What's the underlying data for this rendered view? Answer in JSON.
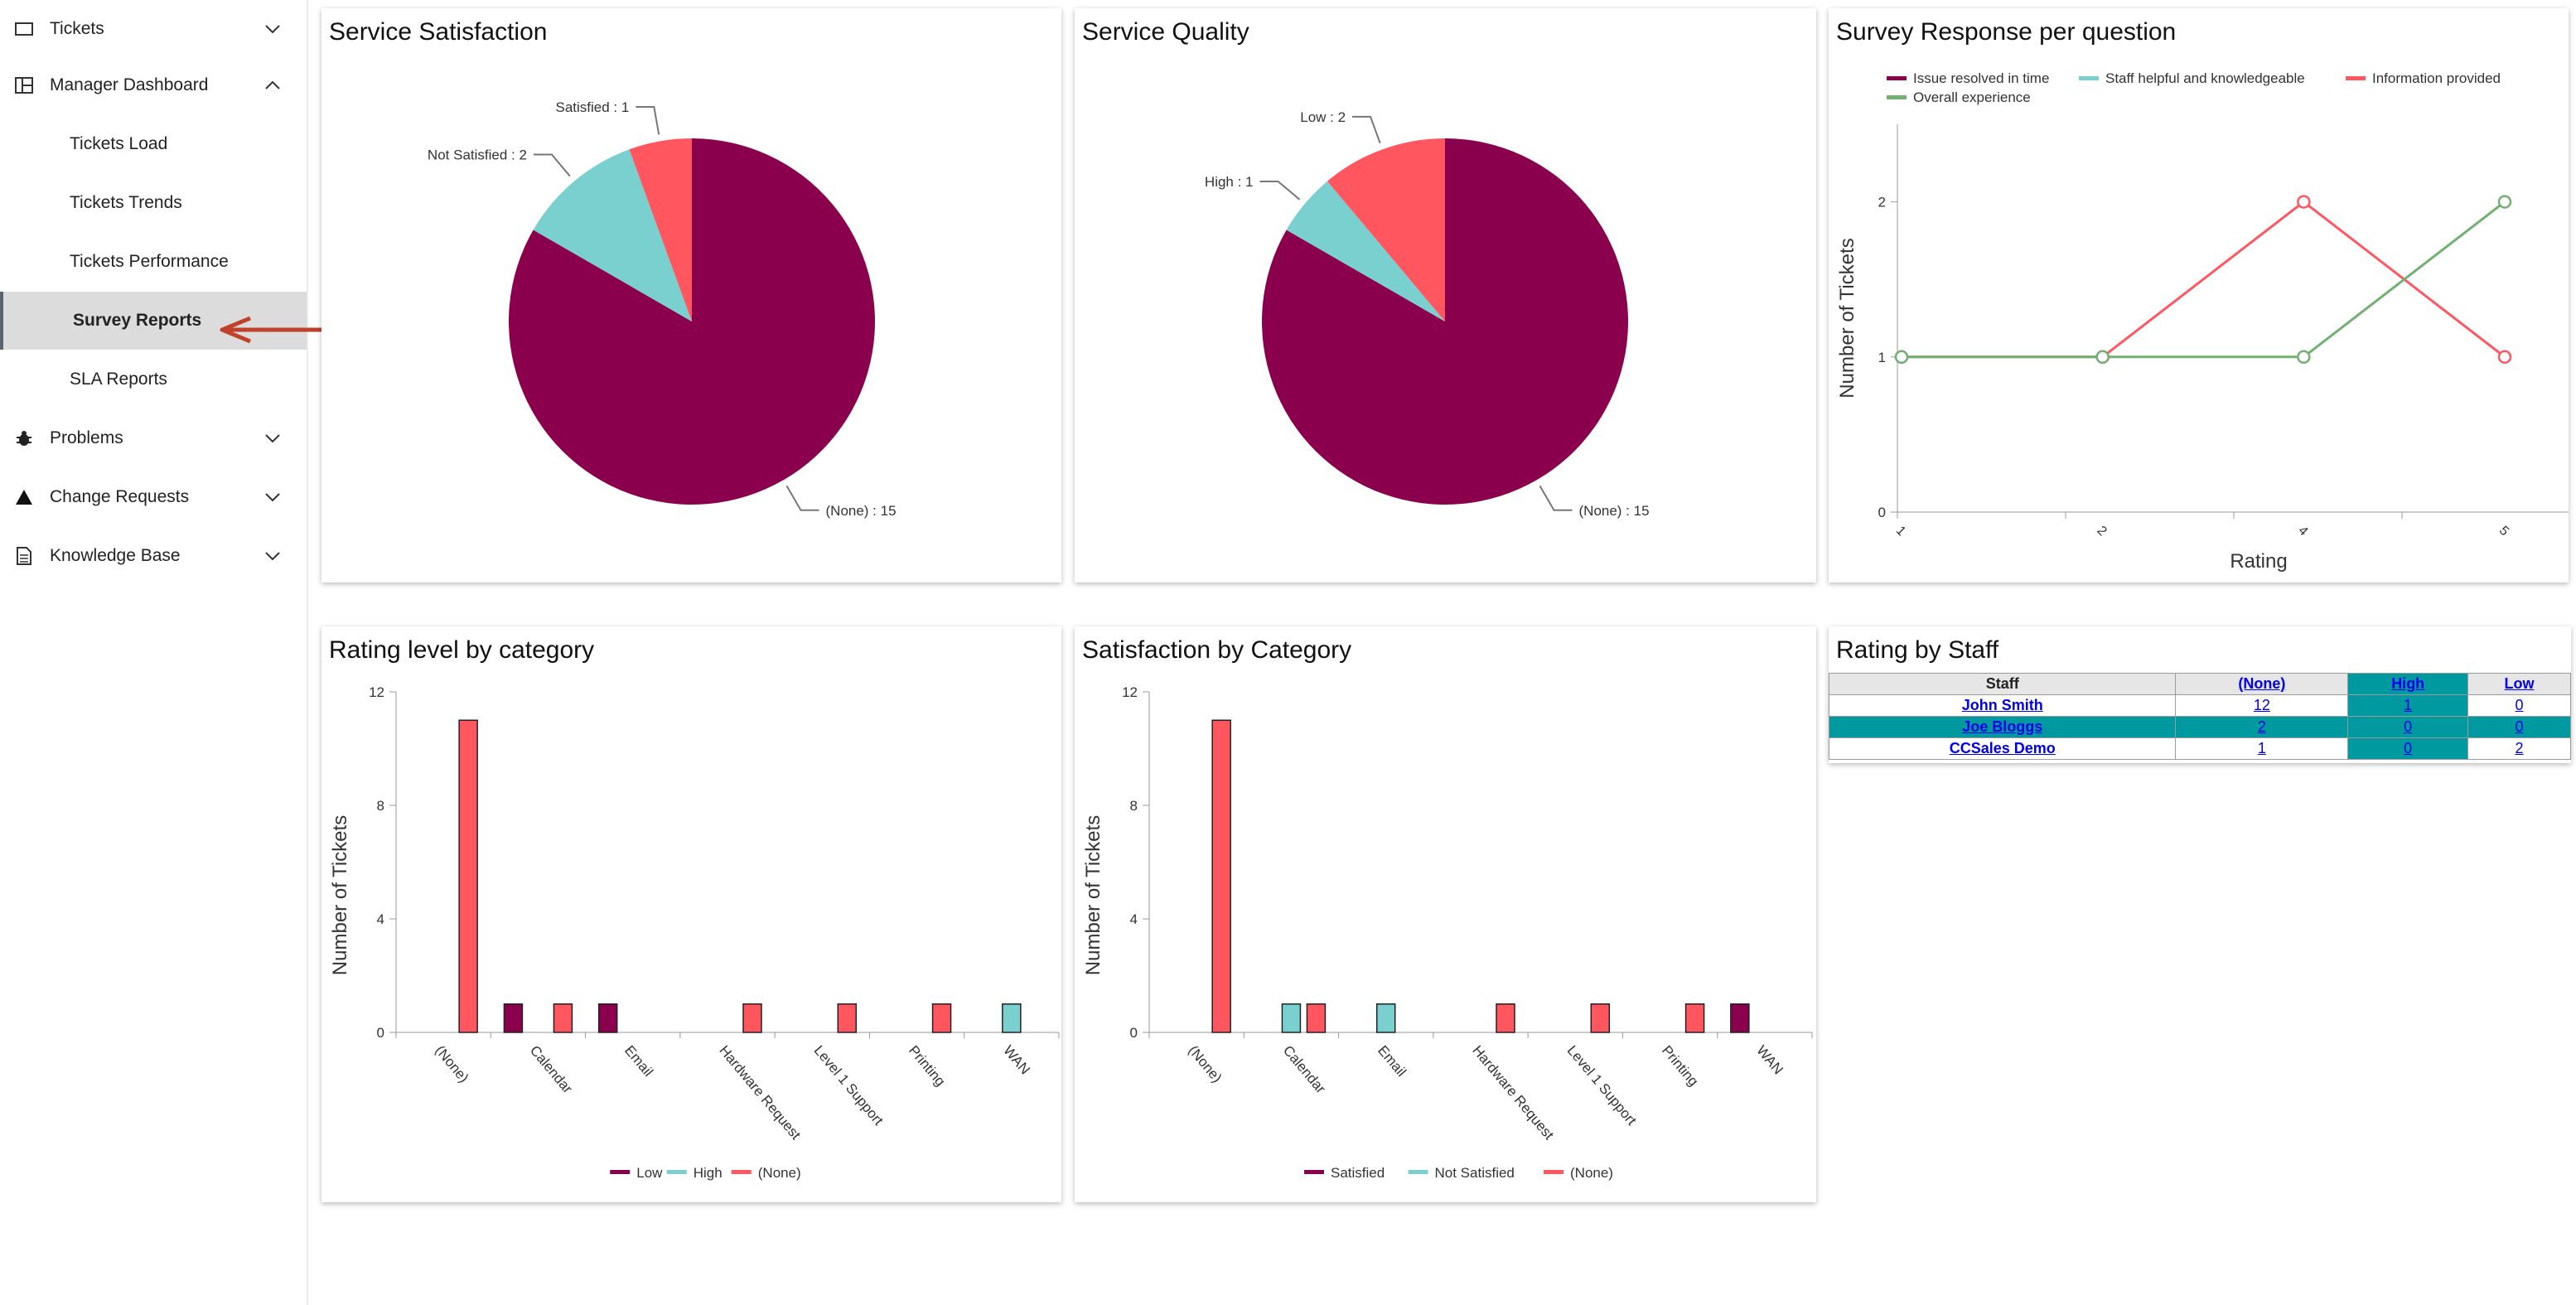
{
  "sidebar": {
    "tickets": "Tickets",
    "manager_dashboard": "Manager Dashboard",
    "sub_items": [
      "Tickets Load",
      "Tickets Trends",
      "Tickets Performance",
      "Survey Reports",
      "SLA Reports"
    ],
    "active_item": "Survey Reports",
    "problems": "Problems",
    "change_requests": "Change Requests",
    "knowledge_base": "Knowledge Base"
  },
  "panels": {
    "service_satisfaction": "Service Satisfaction",
    "service_quality": "Service Quality",
    "survey_response": "Survey Response per question",
    "rating_level": "Rating level by category",
    "satisfaction_by_category": "Satisfaction by Category",
    "rating_by_staff": "Rating by Staff"
  },
  "colors": {
    "maroon": "#8a004c",
    "teal": "#7acfcf",
    "red": "#ff5660",
    "green": "#70b070",
    "table_teal": "#00999f"
  },
  "chart_data": [
    {
      "id": "service_satisfaction",
      "type": "pie",
      "title": "Service Satisfaction",
      "slices": [
        {
          "label": "(None)",
          "value": 15,
          "text": "(None) : 15",
          "color": "#8a004c"
        },
        {
          "label": "Not Satisfied",
          "value": 2,
          "text": "Not Satisfied : 2",
          "color": "#7acfcf"
        },
        {
          "label": "Satisfied",
          "value": 1,
          "text": "Satisfied : 1",
          "color": "#ff5660"
        }
      ]
    },
    {
      "id": "service_quality",
      "type": "pie",
      "title": "Service Quality",
      "slices": [
        {
          "label": "(None)",
          "value": 15,
          "text": "(None) : 15",
          "color": "#8a004c"
        },
        {
          "label": "High",
          "value": 1,
          "text": "High : 1",
          "color": "#7acfcf"
        },
        {
          "label": "Low",
          "value": 2,
          "text": "Low : 2",
          "color": "#ff5660"
        }
      ]
    },
    {
      "id": "survey_response",
      "type": "line",
      "title": "Survey Response per question",
      "x": [
        "1",
        "2",
        "4",
        "5"
      ],
      "xlabel": "Rating",
      "ylabel": "Number of Tickets",
      "yticks": [
        0,
        1,
        2
      ],
      "ylim": [
        0,
        2.5
      ],
      "legend": [
        {
          "name": "Issue resolved in time",
          "color": "#8a004c"
        },
        {
          "name": "Staff helpful and knowledgeable",
          "color": "#7acfcf"
        },
        {
          "name": "Information provided",
          "color": "#ff5660"
        },
        {
          "name": "Overall experience",
          "color": "#70b070"
        }
      ],
      "series": [
        {
          "name": "Information provided",
          "color": "#ff5660",
          "values": [
            1,
            1,
            2,
            1
          ]
        },
        {
          "name": "Overall experience",
          "color": "#70b070",
          "values": [
            1,
            1,
            1,
            2
          ]
        }
      ]
    },
    {
      "id": "rating_level",
      "type": "bar",
      "title": "Rating level by category",
      "categories": [
        "(None)",
        "Calendar",
        "Email",
        "Hardware Request",
        "Level 1 Support",
        "Printing",
        "WAN"
      ],
      "ylabel": "Number of Tickets",
      "yticks": [
        0,
        4,
        8,
        12
      ],
      "ylim": [
        0,
        12
      ],
      "series": [
        {
          "name": "Low",
          "color": "#8a004c",
          "values": [
            0,
            1,
            1,
            0,
            0,
            0,
            0
          ]
        },
        {
          "name": "High",
          "color": "#7acfcf",
          "values": [
            0,
            0,
            0,
            0,
            0,
            0,
            1
          ]
        },
        {
          "name": "(None)",
          "color": "#ff5660",
          "values": [
            11,
            1,
            0,
            1,
            1,
            1,
            0
          ]
        }
      ]
    },
    {
      "id": "satisfaction_by_category",
      "type": "bar",
      "title": "Satisfaction by Category",
      "categories": [
        "(None)",
        "Calendar",
        "Email",
        "Hardware Request",
        "Level 1 Support",
        "Printing",
        "WAN"
      ],
      "ylabel": "Number of Tickets",
      "yticks": [
        0,
        4,
        8,
        12
      ],
      "ylim": [
        0,
        12
      ],
      "series": [
        {
          "name": "Satisfied",
          "color": "#8a004c",
          "values": [
            0,
            0,
            0,
            0,
            0,
            0,
            1
          ]
        },
        {
          "name": "Not Satisfied",
          "color": "#7acfcf",
          "values": [
            0,
            1,
            1,
            0,
            0,
            0,
            0
          ]
        },
        {
          "name": "(None)",
          "color": "#ff5660",
          "values": [
            11,
            1,
            0,
            1,
            1,
            1,
            0
          ]
        }
      ]
    }
  ],
  "staff_table": {
    "headers": [
      "Staff",
      "(None)",
      "High",
      "Low"
    ],
    "rows": [
      {
        "name": "John Smith",
        "none": "12",
        "high": "1",
        "low": "0"
      },
      {
        "name": "Joe Bloggs",
        "none": "2",
        "high": "0",
        "low": "0"
      },
      {
        "name": "CCSales Demo",
        "none": "1",
        "high": "0",
        "low": "2"
      }
    ]
  }
}
